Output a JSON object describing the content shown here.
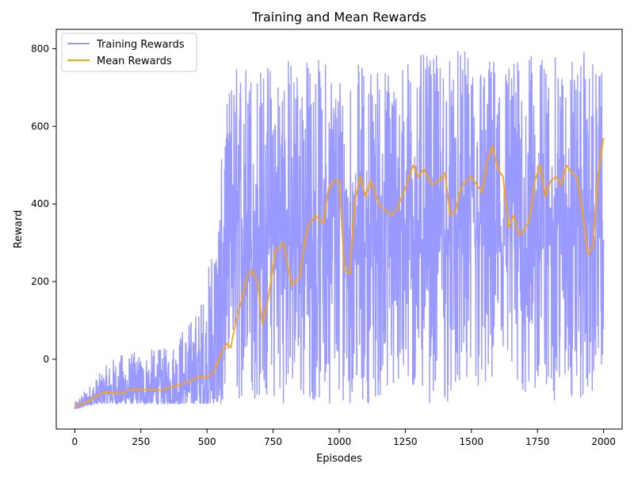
{
  "chart_data": {
    "type": "line",
    "title": "Training and Mean Rewards",
    "xlabel": "Episodes",
    "ylabel": "Reward",
    "xlim": [
      -70,
      2070
    ],
    "ylim": [
      -180,
      850
    ],
    "xticks": [
      0,
      250,
      500,
      750,
      1000,
      1250,
      1500,
      1750,
      2000
    ],
    "yticks": [
      0,
      200,
      400,
      600,
      800
    ],
    "grid": false,
    "legend_position": "top-left",
    "series": [
      {
        "name": "Training Rewards",
        "color": "#9999ff",
        "style": "noisy-envelope",
        "x": [
          0,
          50,
          100,
          150,
          200,
          250,
          300,
          350,
          400,
          450,
          500,
          525,
          550,
          575,
          600,
          650,
          700,
          750,
          800,
          850,
          900,
          950,
          1000,
          1050,
          1100,
          1150,
          1200,
          1250,
          1300,
          1350,
          1400,
          1450,
          1500,
          1550,
          1600,
          1650,
          1700,
          1750,
          1800,
          1850,
          1900,
          1950,
          1975,
          2000
        ],
        "upper": [
          -110,
          -70,
          -30,
          10,
          20,
          20,
          30,
          30,
          80,
          120,
          200,
          400,
          480,
          670,
          760,
          780,
          760,
          780,
          790,
          780,
          780,
          780,
          760,
          760,
          770,
          770,
          760,
          780,
          790,
          780,
          790,
          800,
          790,
          780,
          790,
          780,
          780,
          790,
          780,
          780,
          790,
          800,
          740,
          740
        ],
        "lower": [
          -130,
          -120,
          -115,
          -115,
          -115,
          -115,
          -115,
          -115,
          -115,
          -115,
          -115,
          -115,
          -115,
          -115,
          -115,
          -115,
          -115,
          -115,
          -115,
          -115,
          -115,
          -115,
          -115,
          -115,
          -115,
          -115,
          -115,
          -115,
          -115,
          -115,
          -115,
          -115,
          -115,
          -115,
          -115,
          -115,
          -115,
          -115,
          -115,
          -115,
          -115,
          -115,
          -80,
          -30
        ]
      },
      {
        "name": "Mean Rewards",
        "color": "#ffa500",
        "x": [
          0,
          25,
          50,
          75,
          100,
          125,
          150,
          175,
          200,
          225,
          250,
          275,
          300,
          325,
          350,
          375,
          400,
          425,
          450,
          475,
          500,
          525,
          550,
          575,
          590,
          610,
          630,
          650,
          670,
          690,
          710,
          730,
          760,
          790,
          820,
          850,
          880,
          910,
          940,
          960,
          980,
          1000,
          1020,
          1040,
          1060,
          1080,
          1100,
          1120,
          1150,
          1180,
          1200,
          1220,
          1250,
          1280,
          1300,
          1320,
          1350,
          1380,
          1400,
          1420,
          1440,
          1460,
          1480,
          1500,
          1520,
          1540,
          1560,
          1580,
          1600,
          1620,
          1640,
          1660,
          1680,
          1700,
          1720,
          1740,
          1760,
          1780,
          1800,
          1820,
          1840,
          1860,
          1880,
          1900,
          1920,
          1940,
          1960,
          1980,
          2000
        ],
        "values": [
          -120,
          -115,
          -110,
          -98,
          -88,
          -85,
          -88,
          -88,
          -82,
          -78,
          -78,
          -80,
          -78,
          -80,
          -75,
          -70,
          -65,
          -60,
          -52,
          -45,
          -48,
          -35,
          10,
          40,
          30,
          100,
          150,
          210,
          230,
          200,
          90,
          150,
          280,
          300,
          190,
          210,
          340,
          370,
          350,
          440,
          460,
          460,
          230,
          220,
          410,
          470,
          420,
          460,
          400,
          380,
          370,
          390,
          440,
          500,
          470,
          490,
          450,
          460,
          480,
          370,
          380,
          440,
          460,
          470,
          450,
          430,
          510,
          550,
          490,
          470,
          340,
          370,
          320,
          330,
          360,
          460,
          500,
          420,
          460,
          470,
          450,
          500,
          480,
          470,
          380,
          270,
          290,
          480,
          570
        ]
      }
    ]
  }
}
